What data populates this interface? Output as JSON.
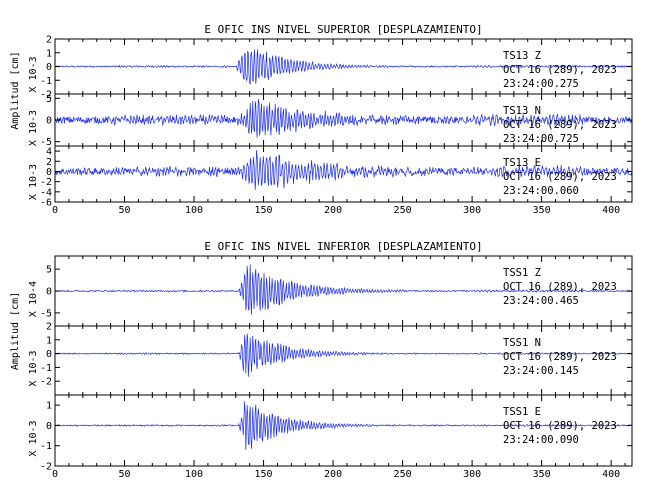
{
  "colors": {
    "trace": "#1f2fe0",
    "axes": "#000000",
    "background": "#ffffff"
  },
  "chart_data": [
    {
      "type": "line",
      "title": "E OFIC INS NIVEL SUPERIOR [DESPLAZAMIENTO]",
      "ylabel": "Amplitud [cm]",
      "xlim": [
        0,
        415
      ],
      "xticks": [
        "0",
        "50",
        "100",
        "150",
        "200",
        "250",
        "300",
        "350",
        "400"
      ],
      "channels": [
        {
          "station": "TS13  Z",
          "date": "OCT 16 (289), 2023",
          "time": "23:24:00.275",
          "scale": "X 10-3",
          "ylim": [
            -2,
            2
          ],
          "yticks": [
            "2",
            "1",
            "0",
            "-1",
            "-2"
          ],
          "signal": {
            "onset": 130,
            "peak_time": 138,
            "peak_amp": 1.8,
            "decay": 28,
            "noise": 0.05,
            "period": 2.2
          }
        },
        {
          "station": "TS13  N",
          "date": "OCT 16 (289), 2023",
          "time": "23:24:00.725",
          "scale": "X 10-3",
          "ylim": [
            -6,
            6
          ],
          "yticks": [
            "5",
            "0",
            "-5"
          ],
          "signal": {
            "onset": 130,
            "peak_time": 145,
            "peak_amp": 5.5,
            "decay": 40,
            "noise": 0.8,
            "period": 2.0
          }
        },
        {
          "station": "TS13  E",
          "date": "OCT 16 (289), 2023",
          "time": "23:24:00.060",
          "scale": "X 10-3",
          "ylim": [
            -6,
            5
          ],
          "yticks": [
            "4",
            "2",
            "0",
            "-2",
            "-4",
            "-6"
          ],
          "signal": {
            "onset": 130,
            "peak_time": 145,
            "peak_amp": 4.2,
            "decay": 45,
            "noise": 0.7,
            "period": 2.3
          }
        }
      ]
    },
    {
      "type": "line",
      "title": "E OFIC INS NIVEL INFERIOR [DESPLAZAMIENTO]",
      "ylabel": "Amplitud [cm]",
      "xlim": [
        0,
        415
      ],
      "xticks": [
        "0",
        "50",
        "100",
        "150",
        "200",
        "250",
        "300",
        "350",
        "400"
      ],
      "channels": [
        {
          "station": "TSS1  Z",
          "date": "OCT 16 (289), 2023",
          "time": "23:24:00.465",
          "scale": "X 10-4",
          "ylim": [
            -8,
            8
          ],
          "yticks": [
            "5",
            "0",
            "-5"
          ],
          "signal": {
            "onset": 132,
            "peak_time": 138,
            "peak_amp": 7.5,
            "decay": 30,
            "noise": 0.15,
            "period": 2.0
          }
        },
        {
          "station": "TSS1  N",
          "date": "OCT 16 (289), 2023",
          "time": "23:24:00.145",
          "scale": "X 10-3",
          "ylim": [
            -3,
            2
          ],
          "yticks": [
            "2",
            "1",
            "0",
            "-1",
            "-2"
          ],
          "signal": {
            "onset": 132,
            "peak_time": 137,
            "peak_amp": 2.0,
            "decay": 25,
            "noise": 0.04,
            "period": 2.0
          }
        },
        {
          "station": "TSS1  E",
          "date": "OCT 16 (289), 2023",
          "time": "23:24:00.090",
          "scale": "X 10-3",
          "ylim": [
            -2,
            1.5
          ],
          "yticks": [
            "1",
            "0",
            "-1",
            "-2"
          ],
          "signal": {
            "onset": 132,
            "peak_time": 137,
            "peak_amp": 1.5,
            "decay": 25,
            "noise": 0.03,
            "period": 2.0
          }
        }
      ]
    }
  ]
}
